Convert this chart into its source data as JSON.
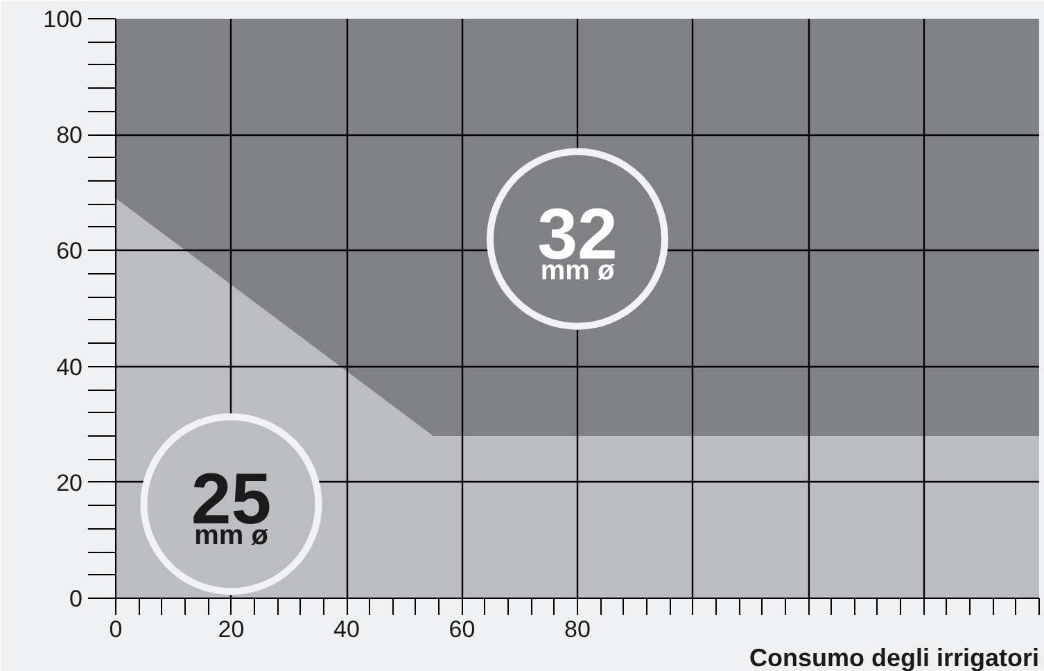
{
  "chart_data": {
    "type": "area",
    "stacked": true,
    "xlabel": "Consumo degli irrigatori",
    "x": [
      0,
      55,
      160
    ],
    "series": [
      {
        "name": "25 mm ø",
        "color": "#bcbdc1",
        "values": [
          69,
          28,
          28
        ]
      },
      {
        "name": "32 mm ø",
        "color": "#808184",
        "values": [
          31,
          72,
          72
        ]
      }
    ],
    "xlim": [
      0,
      160
    ],
    "ylim": [
      0,
      100
    ],
    "xticks": [
      0,
      20,
      40,
      60,
      80,
      {
        "value": 100,
        "label": null
      },
      {
        "value": 120,
        "label": null
      },
      {
        "value": 140,
        "label": null
      },
      {
        "value": 160,
        "label": null
      }
    ],
    "yticks": [
      0,
      20,
      40,
      60,
      80,
      100
    ],
    "grid": true
  }
}
